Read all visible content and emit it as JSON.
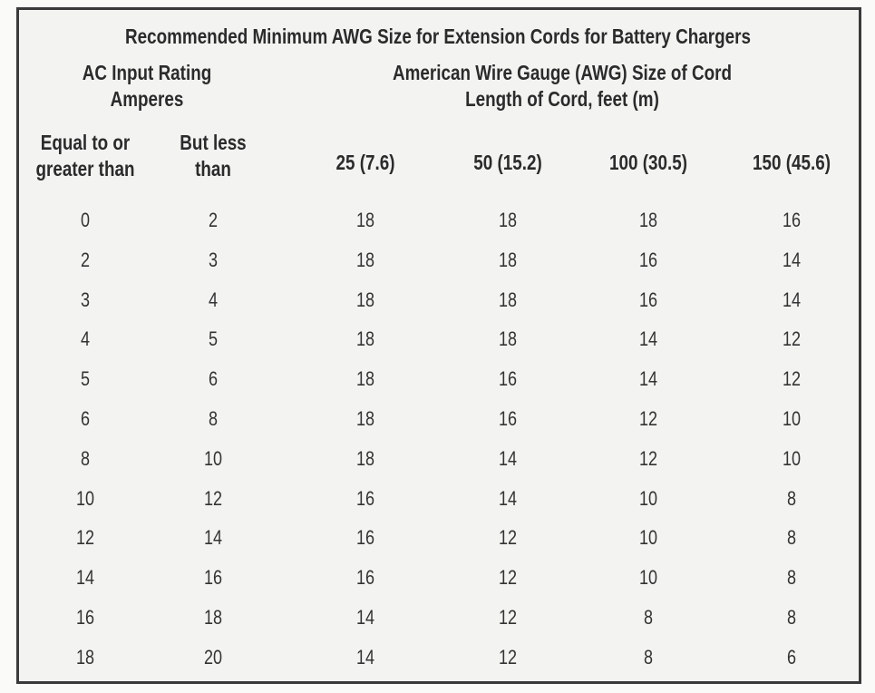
{
  "table": {
    "title": "Recommended Minimum AWG Size for Extension Cords for Battery Chargers",
    "input_group": "AC Input Rating Amperes",
    "cord_group": "American Wire Gauge (AWG) Size of Cord",
    "cord_subgroup": "Length of Cord, feet (m)",
    "columns": [
      "Equal to or greater than",
      "But less than",
      "25 (7.6)",
      "50 (15.2)",
      "100 (30.5)",
      "150 (45.6)"
    ],
    "rows": [
      [
        0,
        2,
        18,
        18,
        18,
        16
      ],
      [
        2,
        3,
        18,
        18,
        16,
        14
      ],
      [
        3,
        4,
        18,
        18,
        16,
        14
      ],
      [
        4,
        5,
        18,
        18,
        14,
        12
      ],
      [
        5,
        6,
        18,
        16,
        14,
        12
      ],
      [
        6,
        8,
        18,
        16,
        12,
        10
      ],
      [
        8,
        10,
        18,
        14,
        12,
        10
      ],
      [
        10,
        12,
        16,
        14,
        10,
        8
      ],
      [
        12,
        14,
        16,
        12,
        10,
        8
      ],
      [
        14,
        16,
        16,
        12,
        10,
        8
      ],
      [
        16,
        18,
        14,
        12,
        8,
        8
      ],
      [
        18,
        20,
        14,
        12,
        8,
        6
      ]
    ]
  }
}
